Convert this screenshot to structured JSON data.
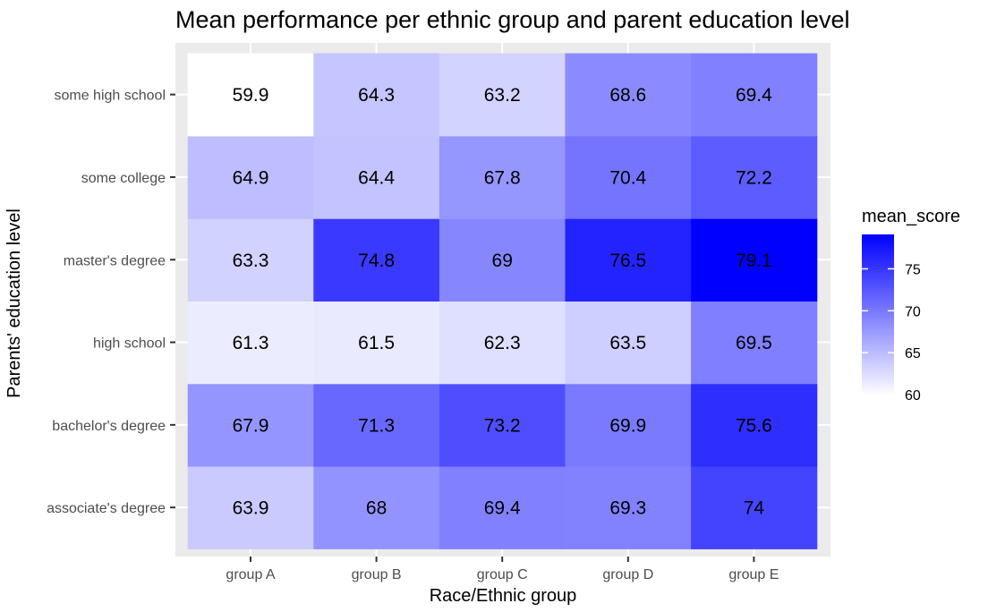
{
  "chart_data": {
    "type": "heatmap",
    "title": "Mean performance per ethnic group and parent education level",
    "xlabel": "Race/Ethnic group",
    "ylabel": "Parents' education level",
    "x_categories": [
      "group A",
      "group B",
      "group C",
      "group D",
      "group E"
    ],
    "y_categories": [
      "associate's degree",
      "bachelor's degree",
      "high school",
      "master's degree",
      "some college",
      "some high school"
    ],
    "values": [
      [
        63.9,
        68,
        69.4,
        69.3,
        74
      ],
      [
        67.9,
        71.3,
        73.2,
        69.9,
        75.6
      ],
      [
        61.3,
        61.5,
        62.3,
        63.5,
        69.5
      ],
      [
        63.3,
        74.8,
        69,
        76.5,
        79.1
      ],
      [
        64.9,
        64.4,
        67.8,
        70.4,
        72.2
      ],
      [
        59.9,
        64.3,
        63.2,
        68.6,
        69.4
      ]
    ],
    "color_scale": {
      "low": "#ffffff",
      "high": "#0000ff",
      "min": 59.9,
      "max": 79.1
    },
    "legend": {
      "title": "mean_score",
      "ticks": [
        60,
        65,
        70,
        75
      ],
      "position": "right"
    },
    "panel_background": "#ebebeb",
    "gridline_color": "#ffffff"
  }
}
